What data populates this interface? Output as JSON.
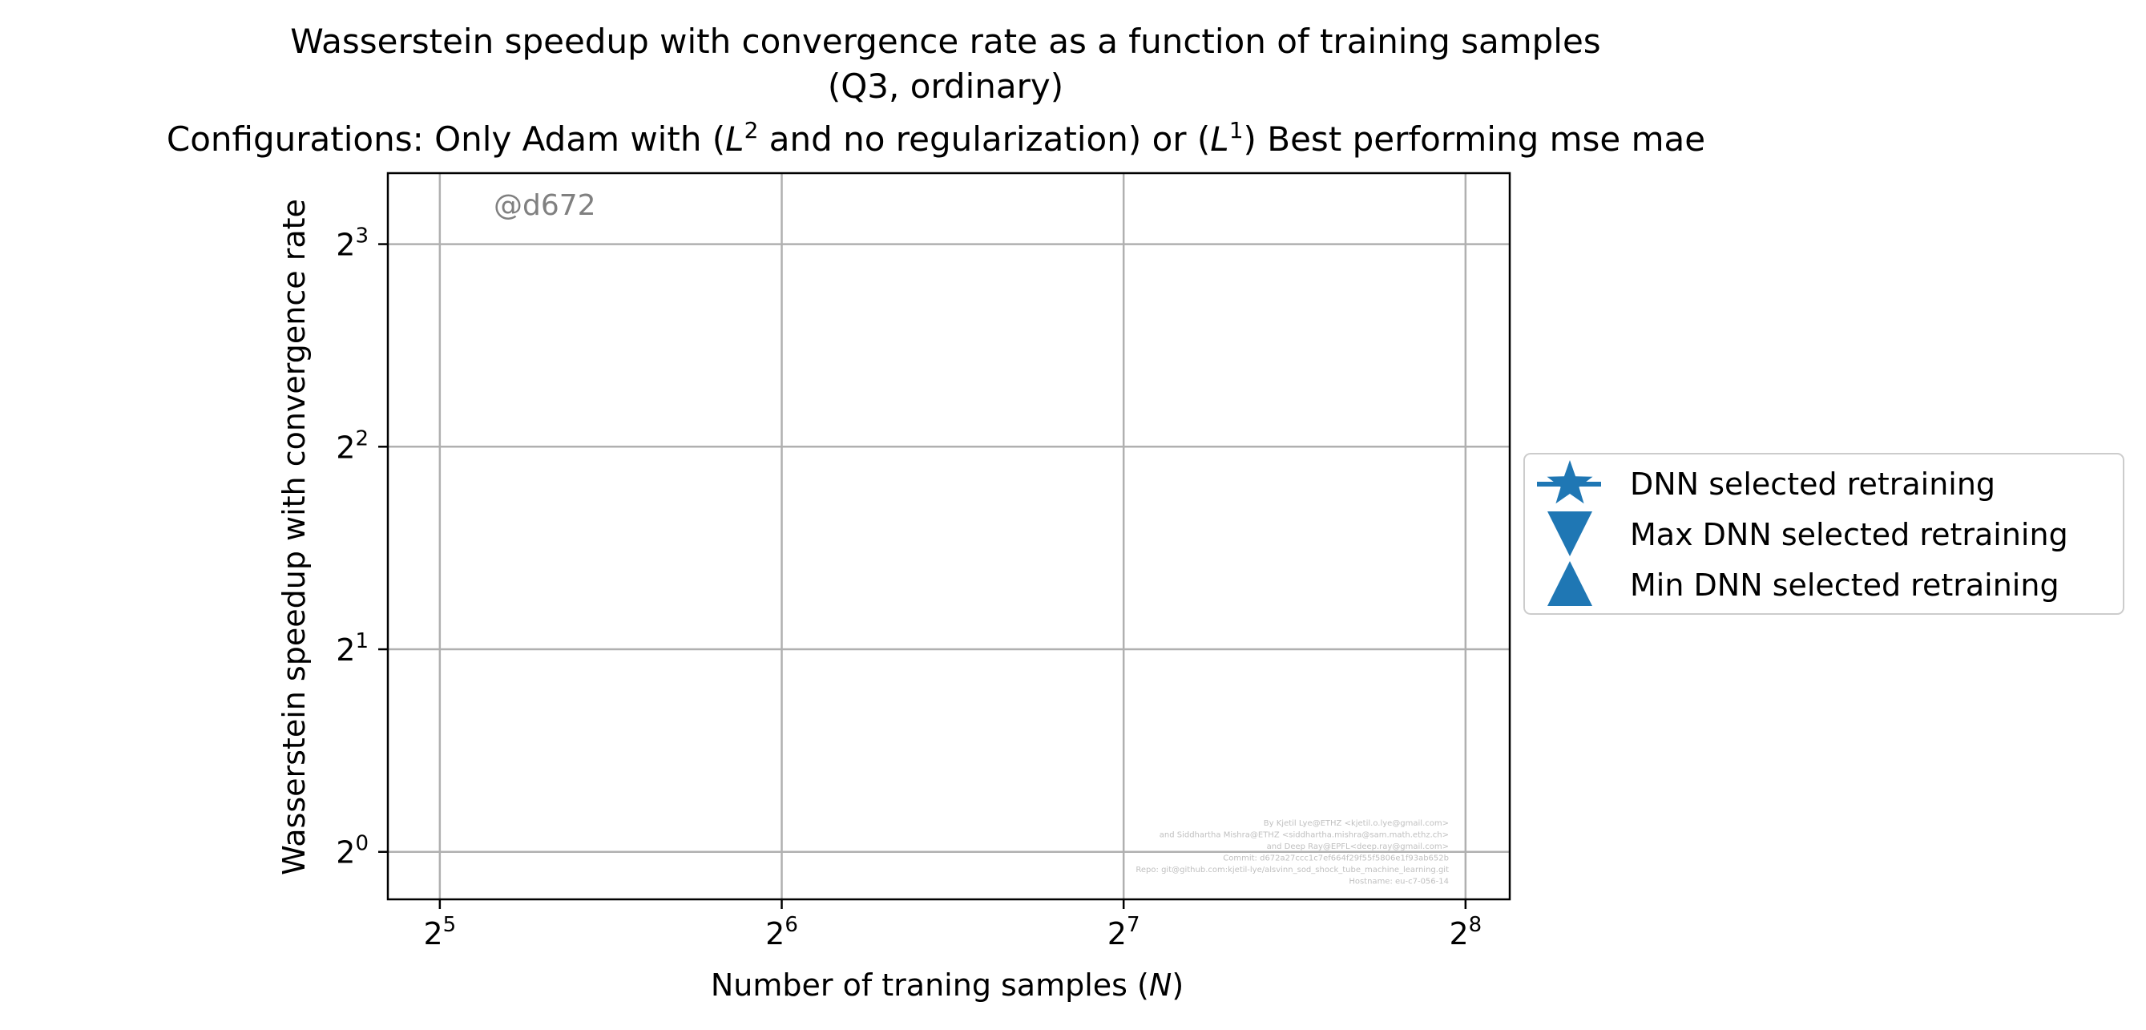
{
  "chart_data": {
    "type": "scatter",
    "title_lines": [
      "Wasserstein speedup with convergence rate as a function of training samples",
      "(Q3, ordinary)"
    ],
    "title_config": {
      "prefix": "Configurations: Only Adam with (",
      "l2_base": "L",
      "l2_exp": "2",
      "middle": " and no regularization) or (",
      "l1_base": "L",
      "l1_exp": "1",
      "suffix": ") Best performing mse mae"
    },
    "xlabel": "Number of traning samples (N)",
    "ylabel": "Wasserstein speedup with convergence rate",
    "x_scale": "log2",
    "y_scale": "log2",
    "xlim": [
      28.8,
      280
    ],
    "ylim": [
      0.85,
      10.2
    ],
    "x_ticks": [
      {
        "base": "2",
        "exp": "5",
        "value": 32
      },
      {
        "base": "2",
        "exp": "6",
        "value": 64
      },
      {
        "base": "2",
        "exp": "7",
        "value": 128
      },
      {
        "base": "2",
        "exp": "8",
        "value": 256
      }
    ],
    "y_ticks": [
      {
        "base": "2",
        "exp": "0",
        "value": 1
      },
      {
        "base": "2",
        "exp": "1",
        "value": 2
      },
      {
        "base": "2",
        "exp": "2",
        "value": 4
      },
      {
        "base": "2",
        "exp": "3",
        "value": 8
      }
    ],
    "grid": true,
    "series": [
      {
        "name": "DNN selected retraining",
        "marker": "star",
        "color": "#1f77b4",
        "values": []
      },
      {
        "name": "Max DNN selected retraining",
        "marker": "triangle-down",
        "color": "#1f77b4",
        "values": []
      },
      {
        "name": "Min DNN selected retraining",
        "marker": "triangle-up",
        "color": "#1f77b4",
        "values": []
      }
    ],
    "legend_placement": "outside-right",
    "annotation": "@d672",
    "credits": [
      "By Kjetil Lye@ETHZ <kjetil.o.lye@gmail.com>",
      "and Siddhartha Mishra@ETHZ <siddhartha.mishra@sam.math.ethz.ch>",
      "and Deep Ray@EPFL<deep.ray@gmail.com>",
      "Commit: d672a27ccc1c7ef664f29f55f5806e1f93ab652b",
      "Repo: git@github.com:kjetil-lye/alsvinn_sod_shock_tube_machine_learning.git",
      "Hostname: eu-c7-056-14"
    ]
  }
}
